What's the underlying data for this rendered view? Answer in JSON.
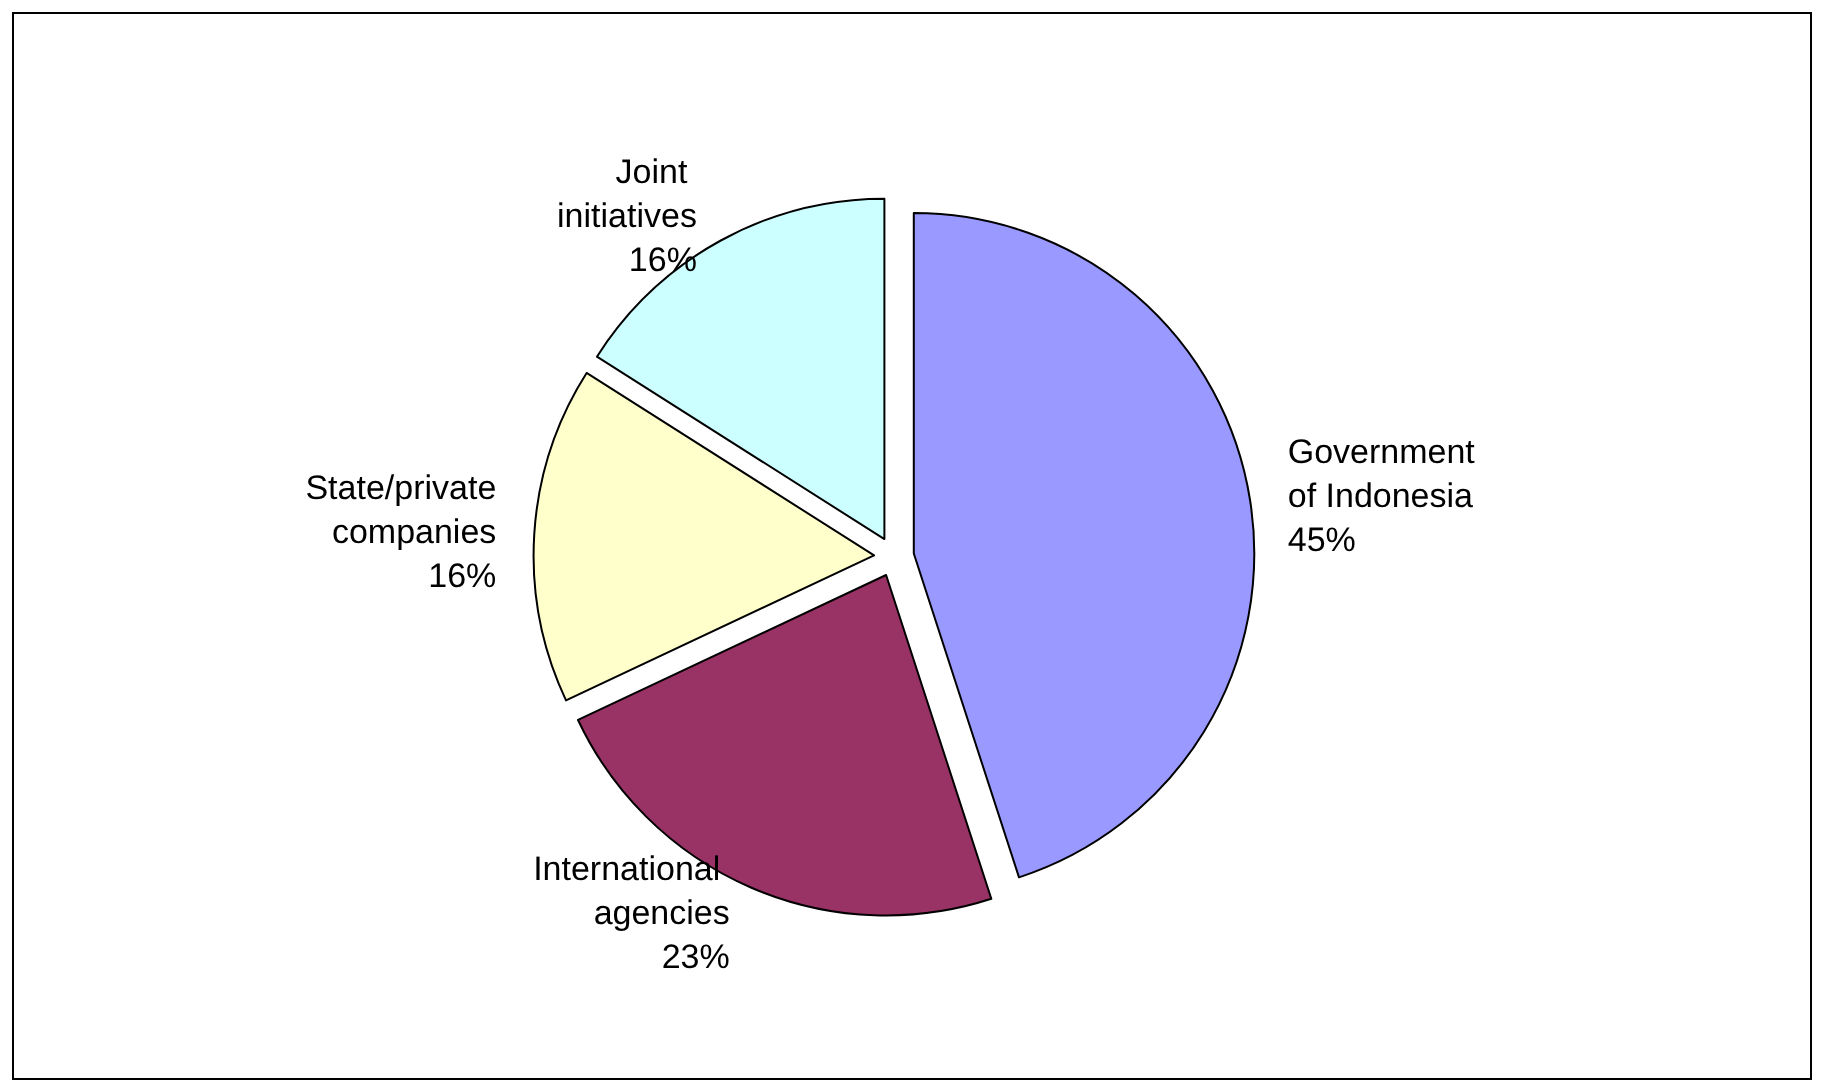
{
  "chart_data": {
    "type": "pie",
    "categories": [
      "Government of Indonesia",
      "International agencies",
      "State/private companies",
      "Joint initiatives"
    ],
    "values": [
      45,
      23,
      16,
      16
    ],
    "value_labels": [
      "45%",
      "23%",
      "16%",
      "16%"
    ],
    "colors": [
      "#9999ff",
      "#993366",
      "#ffffcc",
      "#ccffff"
    ],
    "legend": false
  }
}
